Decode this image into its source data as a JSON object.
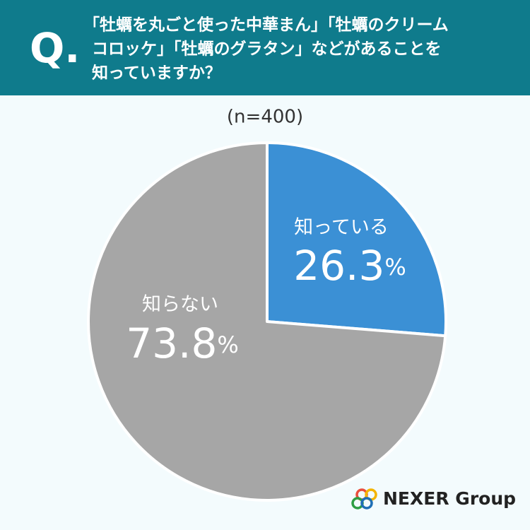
{
  "header": {
    "mark": "Q.",
    "question_lines": [
      "「牡蠣を丸ごと使った中華まん」「牡蠣のクリーム",
      "コロッケ」「牡蠣のグラタン」などがあることを",
      "知っていますか？"
    ]
  },
  "chart_data": {
    "type": "pie",
    "subtitle": "(n=400)",
    "categories": [
      "知っている",
      "知らない"
    ],
    "values": [
      26.3,
      73.8
    ],
    "value_labels": [
      "26.3%",
      "73.8%"
    ],
    "colors": [
      "#3b90d5",
      "#a6a6a6"
    ]
  },
  "logo": {
    "text": "NEXER Group"
  }
}
